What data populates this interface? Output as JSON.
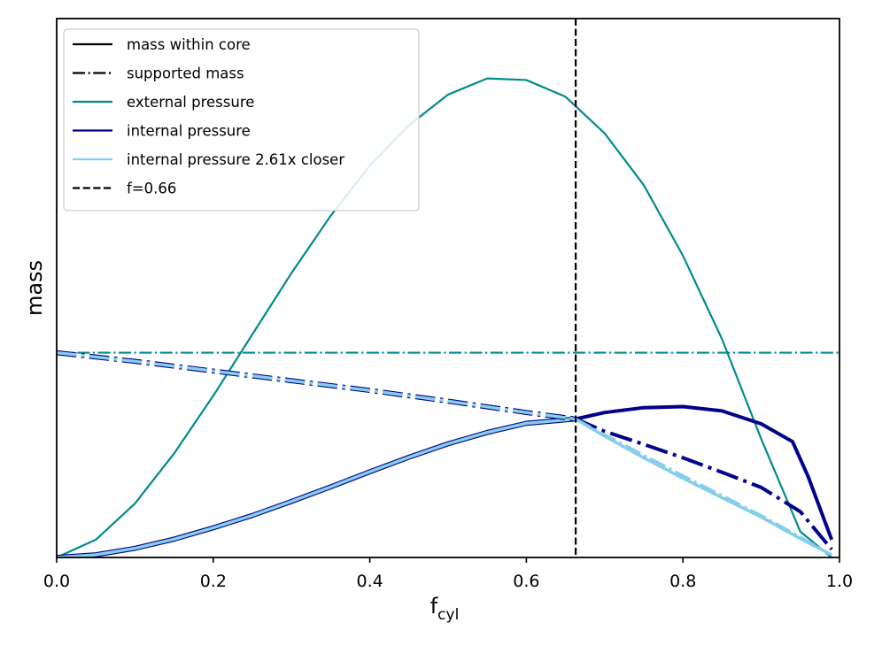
{
  "chart_data": {
    "type": "line",
    "title": "",
    "xlabel": {
      "main": "f",
      "sub": "cyl"
    },
    "ylabel": "mass",
    "xlim": [
      0.0,
      1.0
    ],
    "ylim": [
      0.0,
      1.0
    ],
    "yticks_shown": false,
    "xticks": [
      "0.0",
      "0.2",
      "0.4",
      "0.6",
      "0.8",
      "1.0"
    ],
    "xtick_values": [
      0.0,
      0.2,
      0.4,
      0.6,
      0.8,
      1.0
    ],
    "legend_position": "top-left",
    "colors": {
      "black": "#000000",
      "teal": "#008b8b",
      "navy": "#00008b",
      "skyblue": "#87ceeb"
    },
    "legend": [
      {
        "label": "mass within core",
        "color": "#000000",
        "style": "solid"
      },
      {
        "label": "supported mass",
        "color": "#000000",
        "style": "dashdot"
      },
      {
        "label": "external pressure",
        "color": "#008b8b",
        "style": "solid"
      },
      {
        "label": "internal pressure",
        "color": "#00008b",
        "style": "solid"
      },
      {
        "label": "internal pressure 2.61x closer",
        "color": "#87ceeb",
        "style": "solid"
      },
      {
        "label": "f=0.66",
        "color": "#000000",
        "style": "dashed"
      }
    ],
    "vline": {
      "x": 0.663,
      "label": "f=0.66"
    },
    "series": [
      {
        "name": "external pressure - mass within core",
        "color": "#008b8b",
        "style": "solid",
        "width": 2.2,
        "x": [
          0.0,
          0.05,
          0.1,
          0.15,
          0.2,
          0.25,
          0.3,
          0.35,
          0.4,
          0.45,
          0.5,
          0.55,
          0.6,
          0.65,
          0.7,
          0.75,
          0.8,
          0.85,
          0.9,
          0.95,
          0.99
        ],
        "y": [
          0.0,
          0.033,
          0.1,
          0.193,
          0.3,
          0.414,
          0.528,
          0.634,
          0.727,
          0.802,
          0.859,
          0.889,
          0.886,
          0.855,
          0.787,
          0.691,
          0.56,
          0.405,
          0.22,
          0.048,
          0.0
        ]
      },
      {
        "name": "external pressure - supported mass",
        "color": "#008b8b",
        "style": "dashdot",
        "width": 2.2,
        "x": [
          0.0,
          1.0
        ],
        "y": [
          0.38,
          0.38
        ]
      },
      {
        "name": "internal pressure - mass within core",
        "color": "#00008b",
        "style": "solid",
        "width": 4.0,
        "x": [
          0.663,
          0.7,
          0.75,
          0.8,
          0.85,
          0.9,
          0.94,
          0.96,
          0.99
        ],
        "y": [
          0.257,
          0.269,
          0.278,
          0.28,
          0.272,
          0.248,
          0.215,
          0.15,
          0.033
        ]
      },
      {
        "name": "internal pressure - supported mass",
        "color": "#00008b",
        "style": "dashdot",
        "width": 4.0,
        "x": [
          0.663,
          0.7,
          0.75,
          0.8,
          0.85,
          0.9,
          0.95,
          0.99
        ],
        "y": [
          0.257,
          0.234,
          0.21,
          0.185,
          0.158,
          0.13,
          0.085,
          0.015
        ]
      },
      {
        "name": "internal pressure 2.61x closer - mass within core",
        "color": "#87ceeb",
        "style": "solid",
        "width": 3.5,
        "x": [
          0.663,
          0.7,
          0.75,
          0.8,
          0.85,
          0.9,
          0.95,
          0.99
        ],
        "y": [
          0.257,
          0.225,
          0.185,
          0.147,
          0.111,
          0.075,
          0.035,
          0.005
        ]
      },
      {
        "name": "internal pressure 2.61x closer - supported mass",
        "color": "#87ceeb",
        "style": "dashdot",
        "width": 3.0,
        "x": [
          0.663,
          0.7,
          0.75,
          0.8,
          0.85,
          0.9,
          0.95,
          0.99
        ],
        "y": [
          0.257,
          0.228,
          0.19,
          0.152,
          0.115,
          0.078,
          0.038,
          0.005
        ]
      },
      {
        "name": "mass within core (rising, f < 0.66)",
        "color": "#87ceeb",
        "style": "solid",
        "width": 3.5,
        "outline": "#00008b",
        "x": [
          0.0,
          0.05,
          0.1,
          0.15,
          0.2,
          0.25,
          0.3,
          0.35,
          0.4,
          0.45,
          0.5,
          0.55,
          0.6,
          0.663
        ],
        "y": [
          0.0,
          0.005,
          0.017,
          0.034,
          0.055,
          0.078,
          0.104,
          0.131,
          0.159,
          0.186,
          0.211,
          0.232,
          0.249,
          0.257
        ]
      },
      {
        "name": "supported mass (declining, f < 0.66)",
        "color": "#87ceeb",
        "style": "dashdot",
        "width": 3.5,
        "outline": "#00008b",
        "x": [
          0.0,
          0.1,
          0.2,
          0.3,
          0.4,
          0.5,
          0.6,
          0.663
        ],
        "y": [
          0.38,
          0.364,
          0.346,
          0.328,
          0.31,
          0.29,
          0.269,
          0.257
        ]
      }
    ]
  }
}
